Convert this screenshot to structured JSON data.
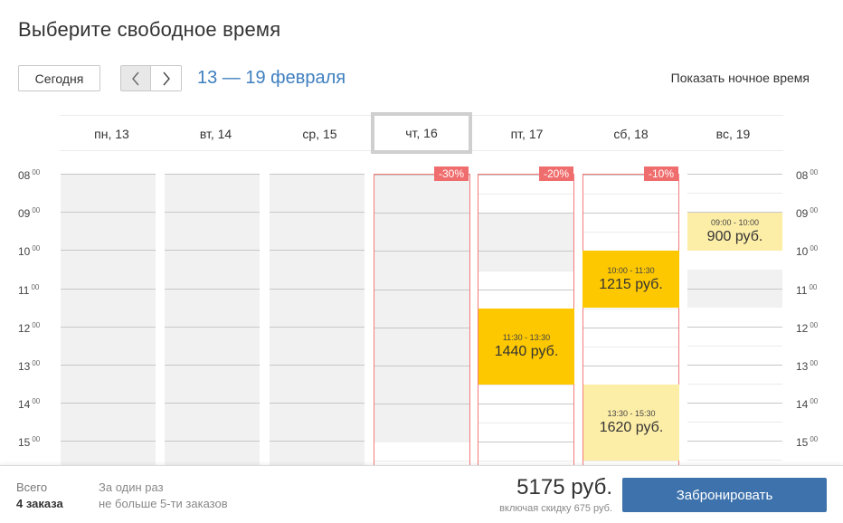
{
  "title": "Выберите свободное время",
  "toolbar": {
    "today_label": "Сегодня",
    "prev_icon": "‹",
    "next_icon": "›",
    "date_range": "13 — 19 февраля",
    "night_toggle_label": "Показать ночное время"
  },
  "days": [
    {
      "label": "пн, 13"
    },
    {
      "label": "вт, 14"
    },
    {
      "label": "ср, 15"
    },
    {
      "label": "чт, 16",
      "discount": "-30%"
    },
    {
      "label": "пт, 17",
      "discount": "-20%"
    },
    {
      "label": "сб, 18",
      "discount": "-10%"
    },
    {
      "label": "вс, 19"
    }
  ],
  "hours": [
    "08",
    "09",
    "10",
    "11",
    "12",
    "13",
    "14",
    "15"
  ],
  "minutes": "00",
  "slots": {
    "fri": {
      "time": "11:30 - 13:30",
      "price": "1440 руб."
    },
    "sat_1": {
      "time": "10:00 - 11:30",
      "price": "1215 руб."
    },
    "sat_2": {
      "time": "13:30 - 15:30",
      "price": "1620 руб."
    },
    "sun": {
      "time": "09:00 - 10:00",
      "price": "900 руб."
    }
  },
  "footer": {
    "total_label": "Всего",
    "total_value": "4 заказа",
    "note_line1": "За один раз",
    "note_line2": "не больше 5-ти заказов",
    "price": "5175 руб.",
    "discount_note": "включая скидку 675 руб.",
    "book_button": "Забронировать"
  },
  "colors": {
    "accent": "#3f7fbf",
    "button": "#3d72ac",
    "selected_slot": "#fdc800",
    "light_slot": "#fdeea7",
    "discount": "#f06d6d"
  }
}
